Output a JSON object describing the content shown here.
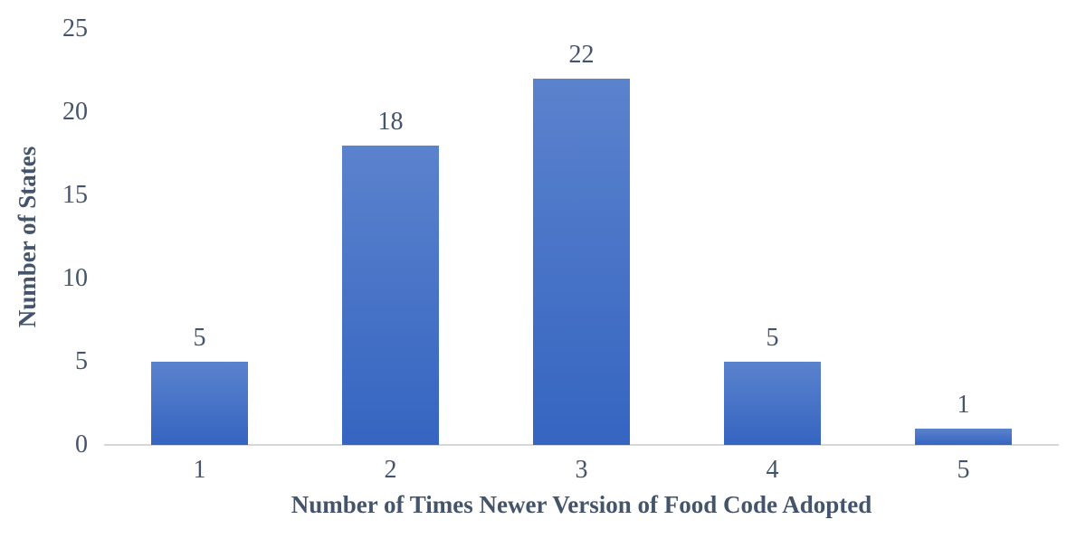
{
  "chart_data": {
    "type": "bar",
    "categories": [
      "1",
      "2",
      "3",
      "4",
      "5"
    ],
    "values": [
      5,
      18,
      22,
      5,
      1
    ],
    "data_labels": [
      "5",
      "18",
      "22",
      "5",
      "1"
    ],
    "title": "",
    "xlabel": "Number of Times Newer Version of Food Code Adopted",
    "ylabel": "Number of States",
    "ylim": [
      0,
      25
    ],
    "yticks": [
      0,
      5,
      10,
      15,
      20,
      25
    ],
    "grid": false,
    "legend": "none",
    "bar_color_top": "#5b82cd",
    "bar_color_bottom": "#3565c1",
    "text_color": "#44546a",
    "axis_line_color": "#d6d6d6"
  }
}
